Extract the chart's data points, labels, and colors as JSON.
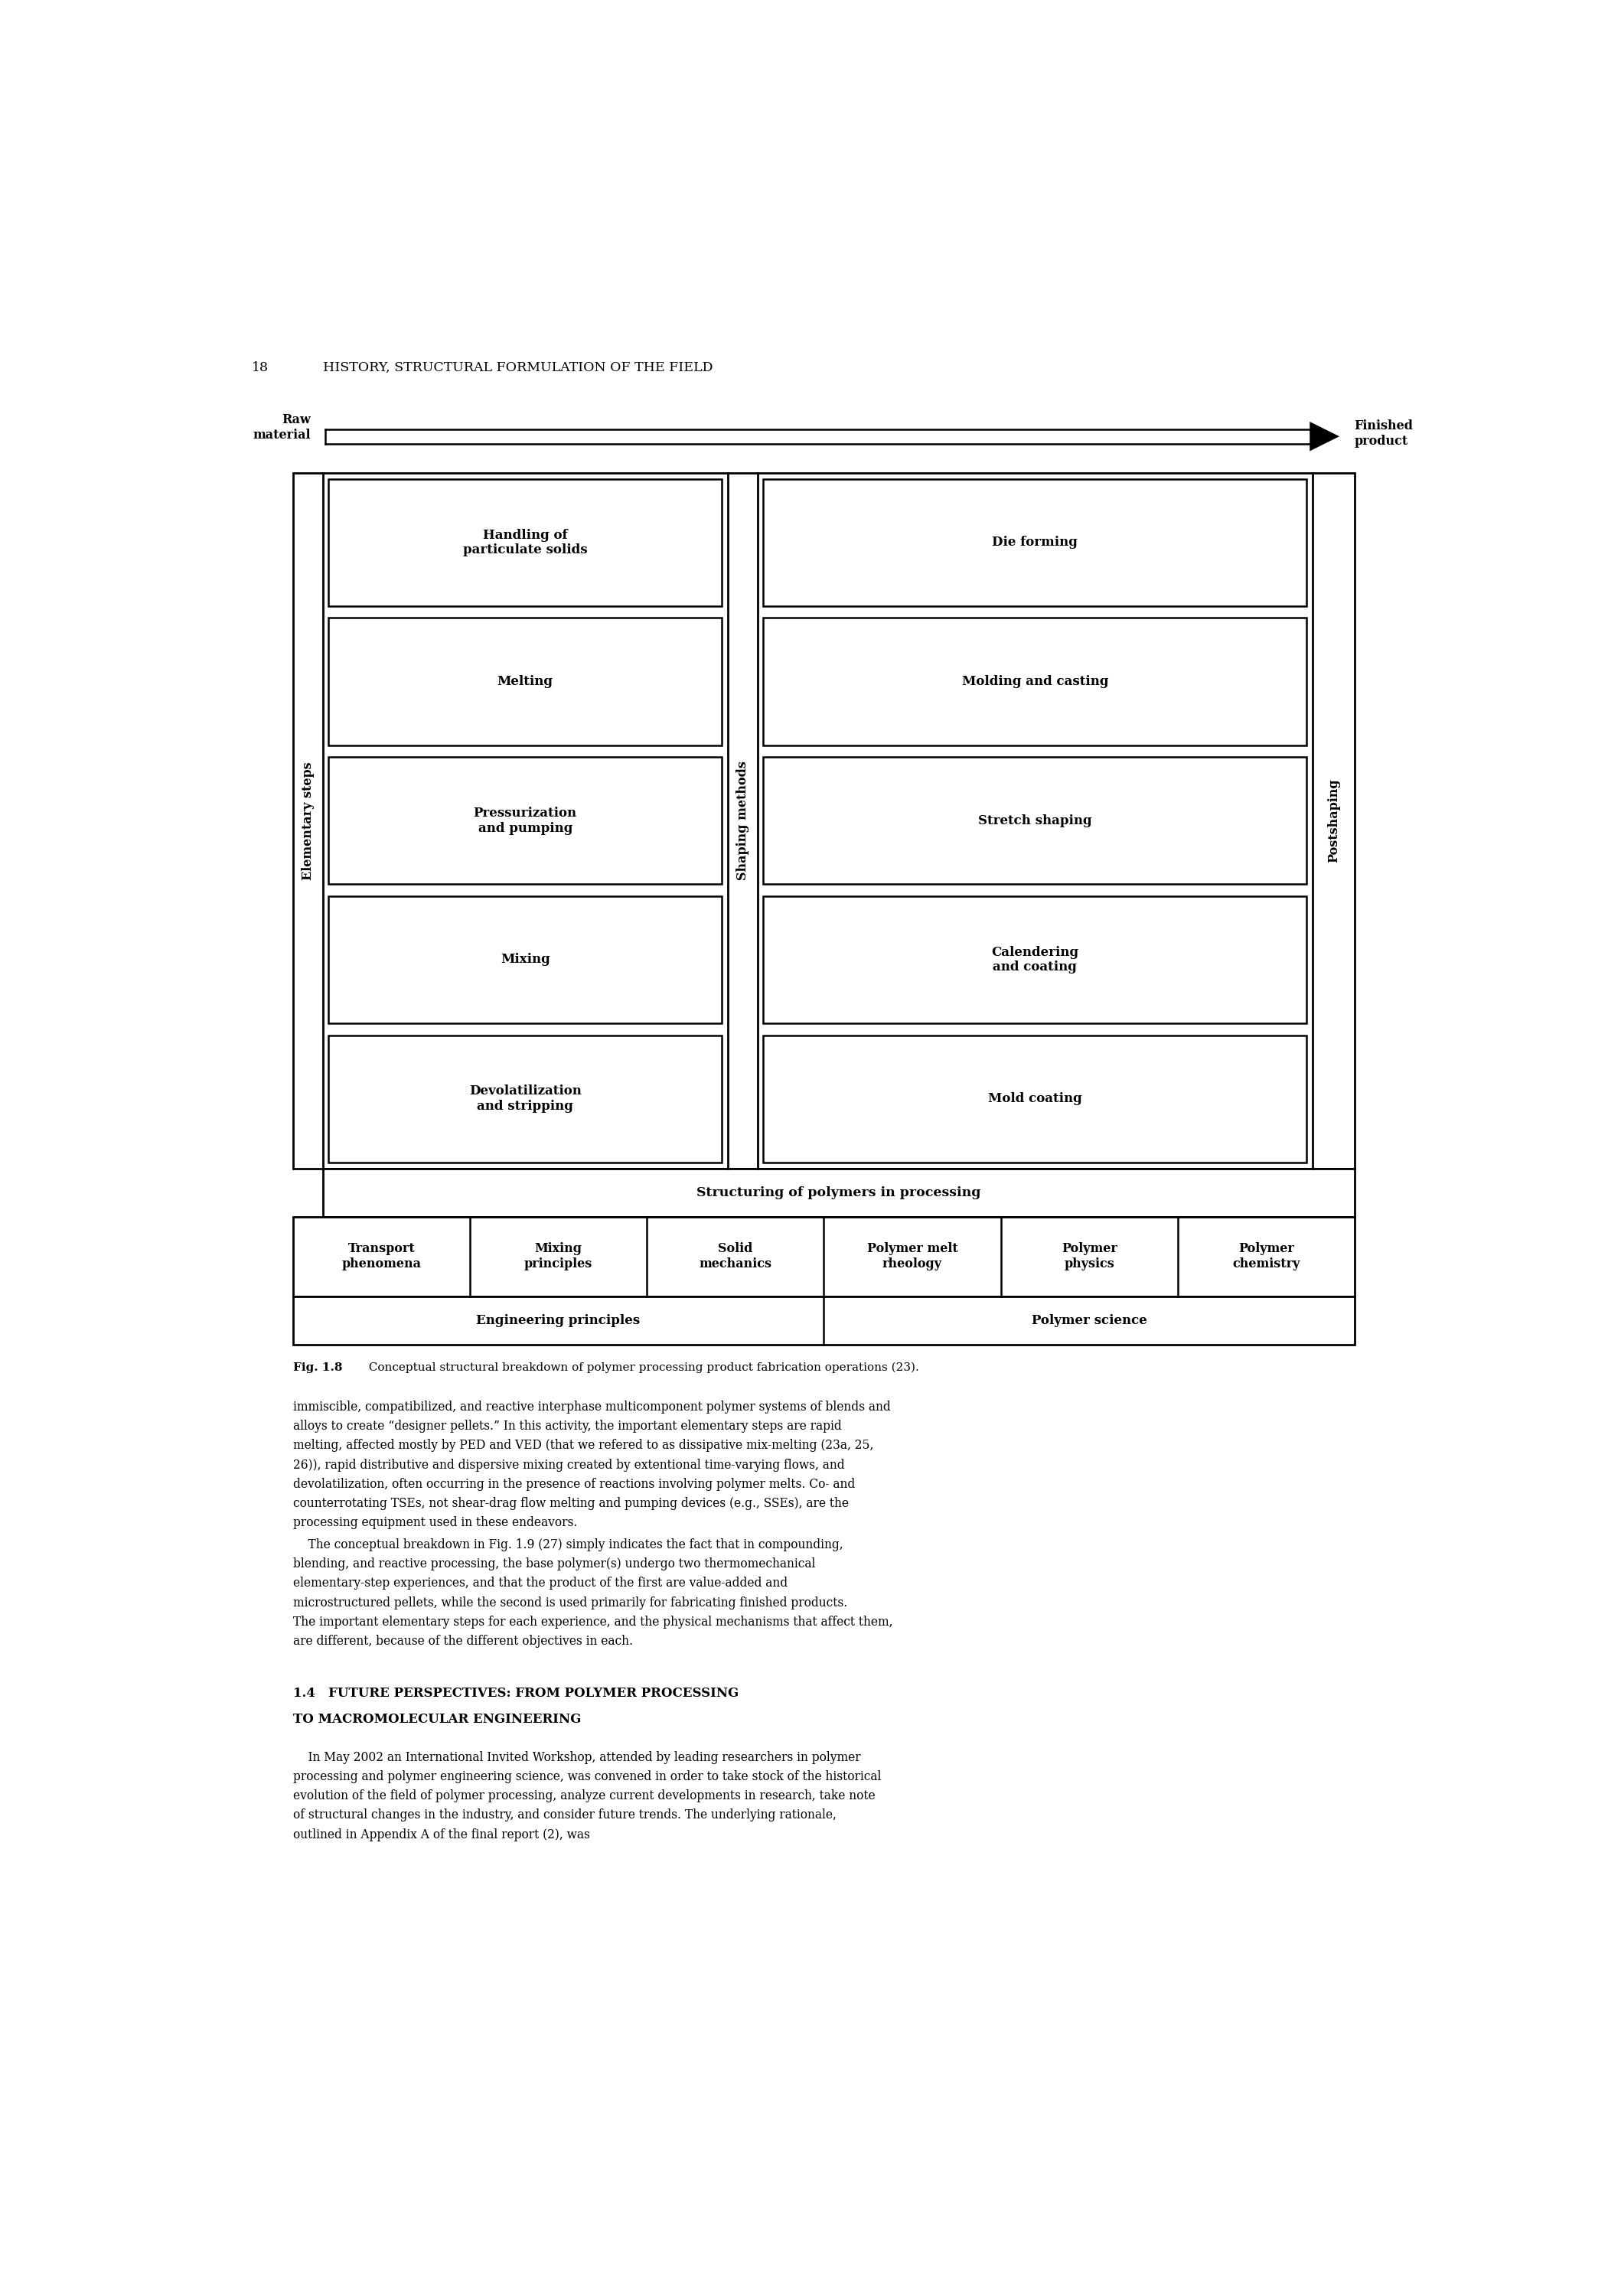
{
  "page_title_num": "18",
  "page_title_text": "HISTORY, STRUCTURAL FORMULATION OF THE FIELD",
  "fig_caption_bold": "Fig. 1.8",
  "fig_caption_rest": "  Conceptual structural breakdown of polymer processing product fabrication operations (23).",
  "raw_material_label": "Raw\nmaterial",
  "finished_product_label": "Finished\nproduct",
  "elementary_steps_label": "Elementary steps",
  "shaping_methods_label": "Shaping methods",
  "postshaping_label": "Postshaping",
  "left_boxes": [
    "Handling of\nparticulate solids",
    "Melting",
    "Pressurization\nand pumping",
    "Mixing",
    "Devolatilization\nand stripping"
  ],
  "right_boxes": [
    "Die forming",
    "Molding and casting",
    "Stretch shaping",
    "Calendering\nand coating",
    "Mold coating"
  ],
  "structuring_label": "Structuring of polymers in processing",
  "principles_row": [
    "Transport\nphenomena",
    "Mixing\nprinciples",
    "Solid\nmechanics",
    "Polymer melt\nrheology",
    "Polymer\nphysics",
    "Polymer\nchemistry"
  ],
  "bottom_row": [
    "Engineering principles",
    "Polymer science"
  ],
  "body_paragraphs": [
    "immiscible, compatibilized, and reactive interphase multicomponent polymer systems of blends and alloys to create “designer pellets.” In this activity, the important elementary steps are rapid melting, affected mostly by PED and VED (that we refered to as dissipative mix-melting (23a, 25, 26)), rapid distributive and dispersive mixing created by extentional time-varying flows, and devolatilization, often occurring in the presence of reactions involving polymer melts. Co- and counterrotating TSEs, not shear-drag flow melting and pumping devices (e.g., SSEs), are the processing equipment used in these endeavors.",
    "The conceptual breakdown in Fig. 1.9 (27) simply indicates the fact that in compounding, blending, and reactive processing, the base polymer(s) undergo two thermomechanical elementary-step experiences, and that the product of the first are value-added and microstructured pellets, while the second is used primarily for fabricating finished products. The important elementary steps for each experience, and the physical mechanisms that affect them, are different, because of the different objectives in each."
  ],
  "section_header_line1": "1.4   FUTURE PERSPECTIVES: FROM POLYMER PROCESSING",
  "section_header_line2": "TO MACROMOLECULAR ENGINEERING",
  "last_paragraph": "In May 2002 an International Invited Workshop, attended by leading researchers in polymer processing and polymer engineering science, was convened in order to take stock of the historical evolution of the field of polymer processing, analyze current developments in research, take note of structural changes in the industry, and consider future trends. The underlying rationale, outlined in Appendix A of the final report (2), was"
}
